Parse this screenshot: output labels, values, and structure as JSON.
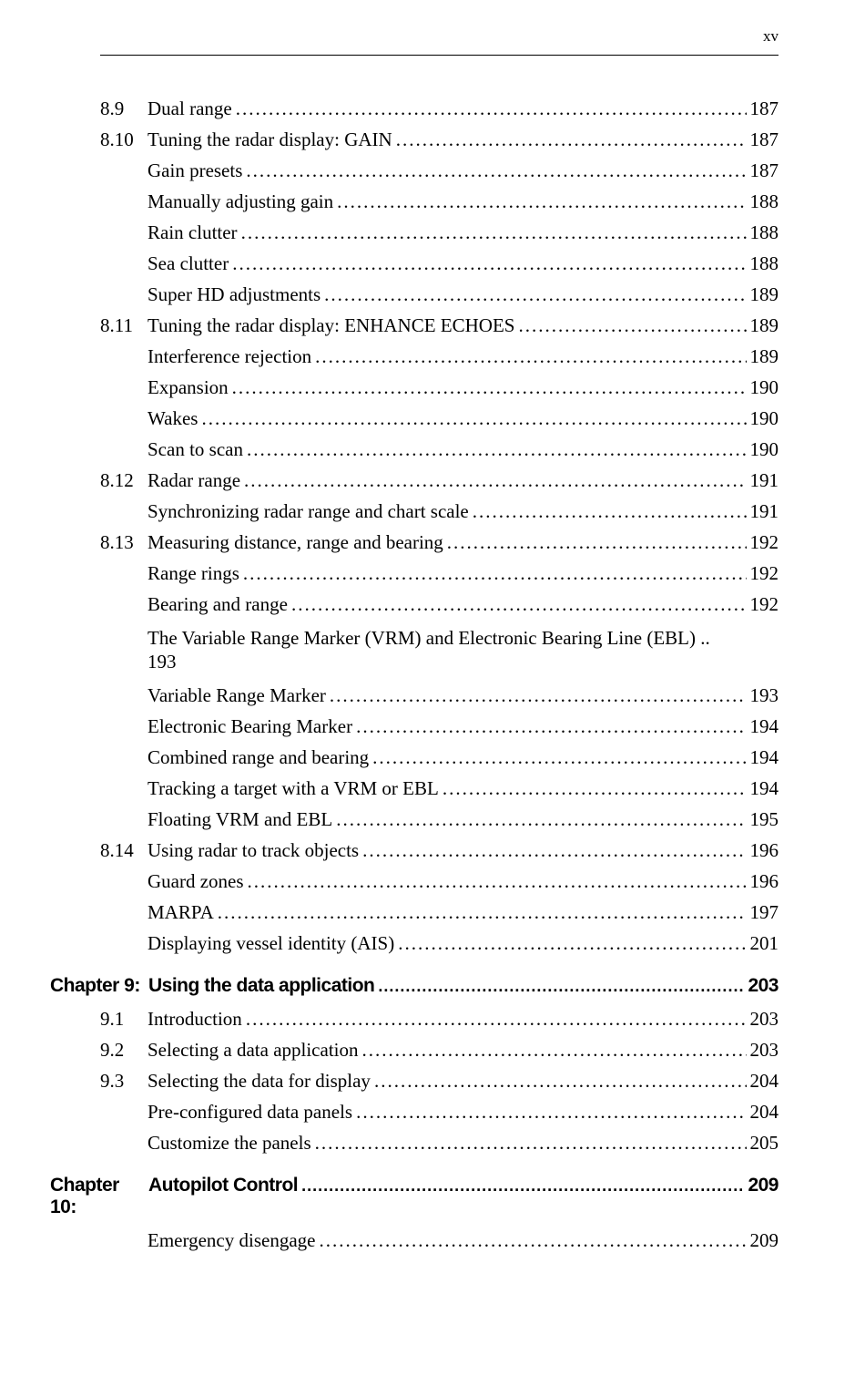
{
  "page_numeral": "xv",
  "leader": "...................................................................................................................................................................................................",
  "sections": [
    {
      "type": "section",
      "num": "8.9",
      "title": "Dual range",
      "page": "187"
    },
    {
      "type": "section",
      "num": "8.10",
      "title": "Tuning the radar display: GAIN",
      "page": "187"
    },
    {
      "type": "sub",
      "title": "Gain presets",
      "page": "187"
    },
    {
      "type": "sub",
      "title": "Manually adjusting gain",
      "page": "188"
    },
    {
      "type": "sub",
      "title": "Rain clutter",
      "page": "188"
    },
    {
      "type": "sub",
      "title": "Sea clutter",
      "page": "188"
    },
    {
      "type": "sub",
      "title": "Super HD adjustments",
      "page": "189"
    },
    {
      "type": "section",
      "num": "8.11",
      "title": "Tuning the radar display: ENHANCE ECHOES",
      "page": "189"
    },
    {
      "type": "sub",
      "title": "Interference rejection",
      "page": "189"
    },
    {
      "type": "sub",
      "title": "Expansion",
      "page": "190"
    },
    {
      "type": "sub",
      "title": "Wakes",
      "page": "190"
    },
    {
      "type": "sub",
      "title": "Scan to scan",
      "page": "190"
    },
    {
      "type": "section",
      "num": "8.12",
      "title": "Radar range",
      "page": "191"
    },
    {
      "type": "sub",
      "title": "Synchronizing radar range and chart scale",
      "page": "191"
    },
    {
      "type": "section",
      "num": "8.13",
      "title": "Measuring distance, range and bearing",
      "page": "192"
    },
    {
      "type": "sub",
      "title": "Range rings",
      "page": "192"
    },
    {
      "type": "sub",
      "title": "Bearing and range",
      "page": "192"
    },
    {
      "type": "wrap",
      "title": "The Variable Range Marker (VRM) and Electronic Bearing Line (EBL)  ..",
      "page": "193"
    },
    {
      "type": "sub",
      "title": "Variable Range Marker",
      "page": "193"
    },
    {
      "type": "sub",
      "title": "Electronic Bearing Marker",
      "page": "194"
    },
    {
      "type": "sub",
      "title": "Combined range and bearing",
      "page": "194"
    },
    {
      "type": "sub",
      "title": "Tracking a target with a VRM or EBL",
      "page": "194"
    },
    {
      "type": "sub",
      "title": "Floating VRM and EBL",
      "page": "195"
    },
    {
      "type": "section",
      "num": "8.14",
      "title": "Using radar to track objects",
      "page": "196"
    },
    {
      "type": "sub",
      "title": "Guard zones",
      "page": "196"
    },
    {
      "type": "sub",
      "title": "MARPA",
      "page": "197"
    },
    {
      "type": "sub",
      "title": "Displaying vessel identity (AIS)",
      "page": "201"
    },
    {
      "type": "chapter",
      "label": "Chapter 9:",
      "title": "Using the data application",
      "page": "203"
    },
    {
      "type": "section",
      "num": "9.1",
      "title": "Introduction",
      "page": "203"
    },
    {
      "type": "section",
      "num": "9.2",
      "title": "Selecting a data application",
      "page": "203"
    },
    {
      "type": "section",
      "num": "9.3",
      "title": "Selecting the data for display",
      "page": "204"
    },
    {
      "type": "sub",
      "title": "Pre-configured data panels",
      "page": "204"
    },
    {
      "type": "sub",
      "title": "Customize the panels",
      "page": "205"
    },
    {
      "type": "chapter",
      "label": "Chapter 10:",
      "title": "Autopilot Control",
      "page": "209"
    },
    {
      "type": "sub",
      "title": "Emergency disengage",
      "page": "209"
    }
  ]
}
